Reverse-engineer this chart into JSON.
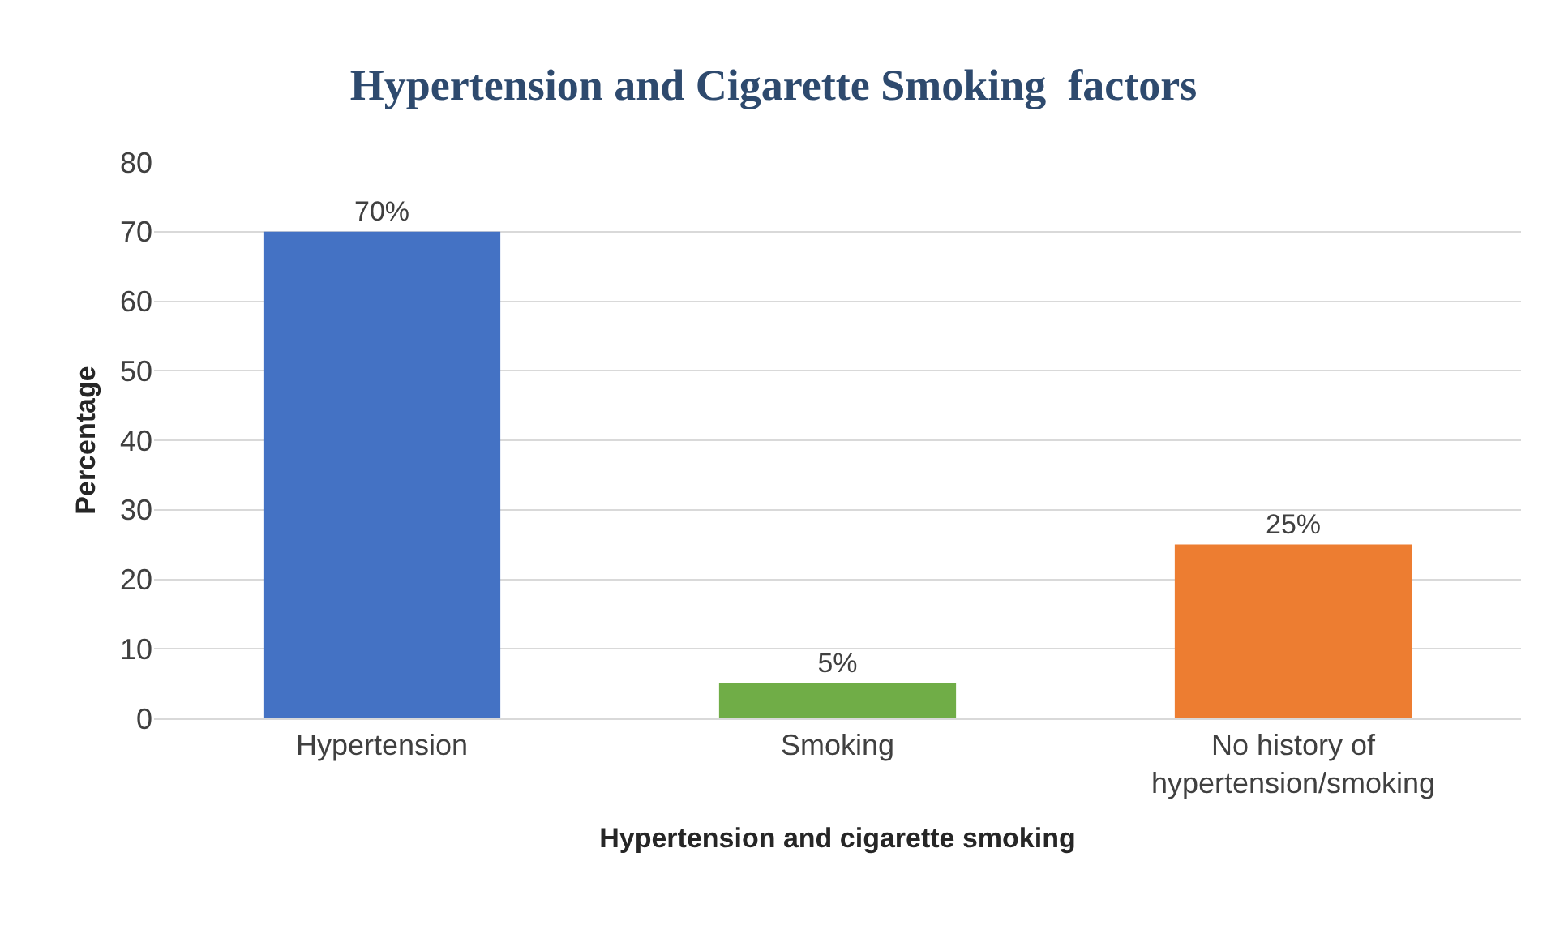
{
  "chart_data": {
    "type": "bar",
    "title": "Hypertension and Cigarette Smoking  factors",
    "xlabel": "Hypertension and cigarette smoking",
    "ylabel": "Percentage",
    "categories": [
      "Hypertension",
      "Smoking",
      "No history of hypertension/smoking"
    ],
    "values": [
      70,
      5,
      25
    ],
    "colors": [
      "#4472c4",
      "#70ad47",
      "#ed7d31"
    ],
    "value_labels": [
      "70%",
      "5%",
      "25%"
    ],
    "ylim": [
      0,
      80
    ],
    "yticks": [
      0,
      10,
      20,
      30,
      40,
      50,
      60,
      70,
      80
    ],
    "grid": "y",
    "legend": false
  }
}
